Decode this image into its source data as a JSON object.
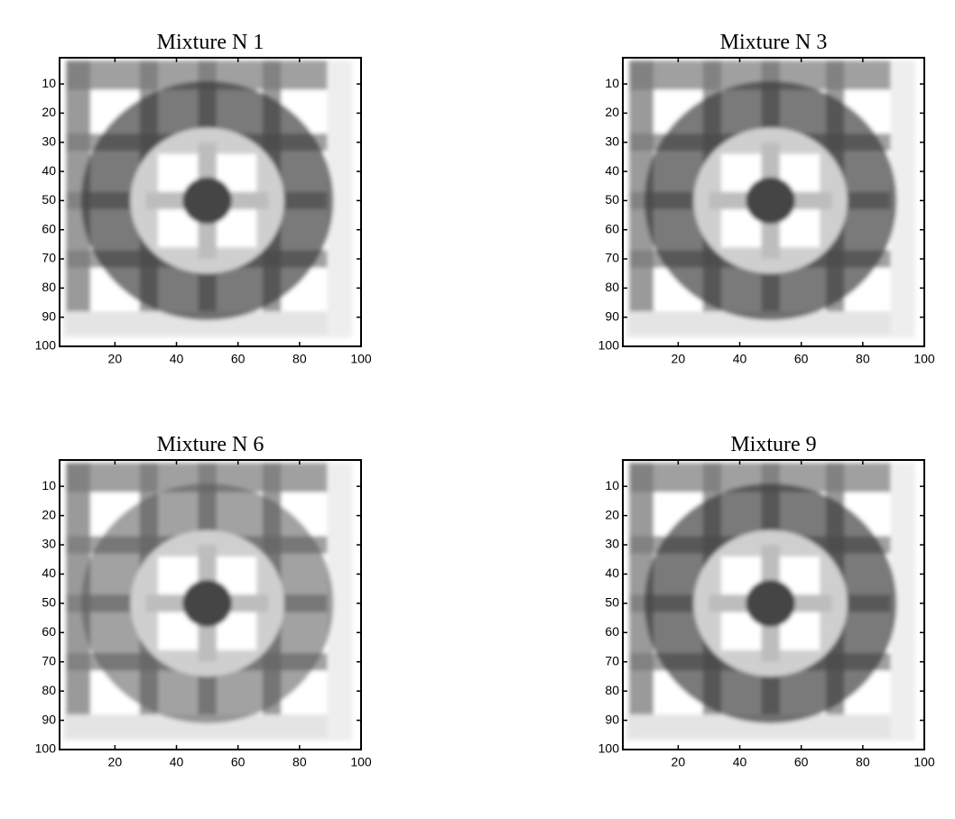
{
  "chart_data": [
    {
      "type": "image",
      "title": "Mixture N 1",
      "xlim": [
        2,
        100
      ],
      "ylim": [
        1,
        100
      ],
      "y_direction": "reverse",
      "xticks": [
        20,
        40,
        60,
        80,
        100
      ],
      "yticks": [
        10,
        20,
        30,
        40,
        50,
        60,
        70,
        80,
        90,
        100
      ]
    },
    {
      "type": "image",
      "title": "Mixture N 3",
      "xlim": [
        2,
        100
      ],
      "ylim": [
        1,
        100
      ],
      "y_direction": "reverse",
      "xticks": [
        20,
        40,
        60,
        80,
        100
      ],
      "yticks": [
        10,
        20,
        30,
        40,
        50,
        60,
        70,
        80,
        90,
        100
      ]
    },
    {
      "type": "image",
      "title": "Mixture N 6",
      "xlim": [
        2,
        100
      ],
      "ylim": [
        1,
        100
      ],
      "y_direction": "reverse",
      "xticks": [
        20,
        40,
        60,
        80,
        100
      ],
      "yticks": [
        10,
        20,
        30,
        40,
        50,
        60,
        70,
        80,
        90,
        100
      ]
    },
    {
      "type": "image",
      "title": "Mixture 9",
      "xlim": [
        2,
        100
      ],
      "ylim": [
        1,
        100
      ],
      "y_direction": "reverse",
      "xticks": [
        20,
        40,
        60,
        80,
        100
      ],
      "yticks": [
        10,
        20,
        30,
        40,
        50,
        60,
        70,
        80,
        90,
        100
      ]
    }
  ]
}
